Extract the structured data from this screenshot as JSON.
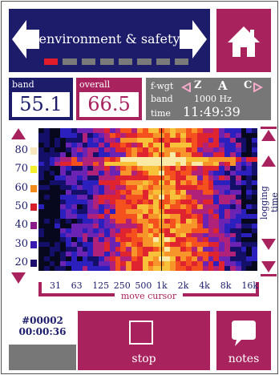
{
  "header": {
    "title": "environment & safety",
    "page_count": 8,
    "active_page": 1
  },
  "readouts": {
    "band_label": "band",
    "band_value": "55.1",
    "overall_label": "overall",
    "overall_value": "66.5"
  },
  "settings": {
    "fwgt_label": "f-wgt",
    "weightings": [
      "Z",
      "A",
      "C"
    ],
    "selected_weighting": "A",
    "band_label": "band",
    "band_value": "1000 Hz",
    "time_label": "time",
    "time_value": "11:49:39"
  },
  "spectrogram": {
    "y_labels": [
      "80",
      "70",
      "60",
      "50",
      "40",
      "30",
      "20"
    ],
    "level_colors": [
      "#f8e6bf",
      "#f4ef2a",
      "#f28a1c",
      "#d71f2a",
      "#8c1a88",
      "#3a1ab0",
      "#1c0f6c"
    ],
    "x_labels": [
      "31",
      "63",
      "125",
      "250",
      "500",
      "1k",
      "2k",
      "4k",
      "8k",
      "16k"
    ],
    "move_cursor_label": "move cursor",
    "logging_time_label": "logging time"
  },
  "footer": {
    "record_id": "#00002",
    "elapsed": "00:00:36",
    "stop_label": "stop",
    "notes_label": "notes"
  },
  "colors": {
    "navy": "#1d1c6b",
    "magenta": "#a8235e",
    "gray": "#777777"
  }
}
